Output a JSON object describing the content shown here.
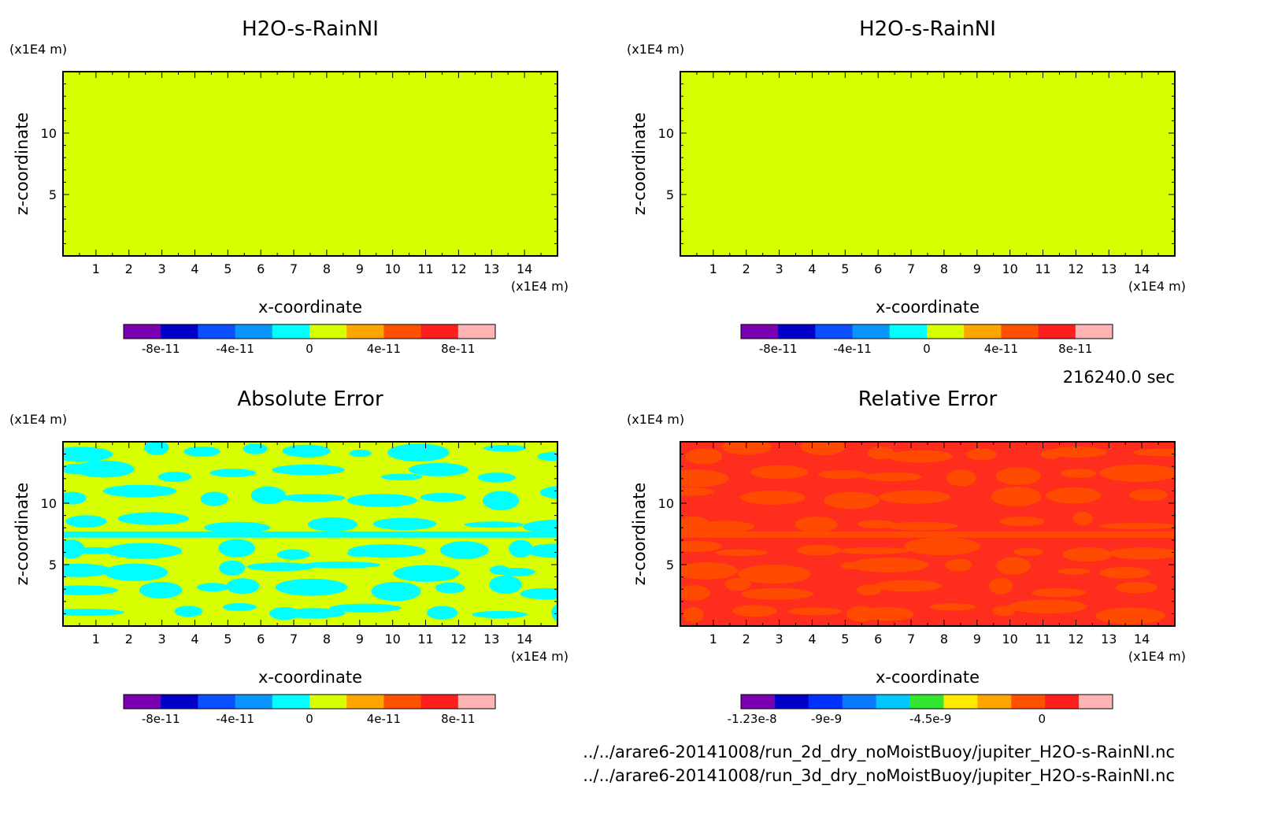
{
  "chart_data": [
    {
      "type": "heatmap",
      "title": "H2O-s-RainNI",
      "xlabel": "x-coordinate",
      "ylabel": "z-coordinate",
      "x_unit": "(x1E4 m)",
      "y_unit": "(x1E4 m)",
      "xlim": [
        0,
        15
      ],
      "ylim": [
        0,
        15
      ],
      "x_ticks": [
        "1",
        "2",
        "3",
        "4",
        "5",
        "6",
        "7",
        "8",
        "9",
        "10",
        "11",
        "12",
        "13",
        "14"
      ],
      "y_ticks": [
        "5",
        "10"
      ],
      "field": "uniform",
      "field_value": 0,
      "field_color": "#d7ff00",
      "colorbar": {
        "colors": [
          "#7a00b0",
          "#0000c8",
          "#0a50ff",
          "#0a96ff",
          "#00ffff",
          "#d7ff00",
          "#ffa500",
          "#ff5000",
          "#ff1e1e",
          "#ffb4b4"
        ],
        "labels": [
          "-8e-11",
          "-4e-11",
          "0",
          "4e-11",
          "8e-11"
        ]
      }
    },
    {
      "type": "heatmap",
      "title": "H2O-s-RainNI",
      "xlabel": "x-coordinate",
      "ylabel": "z-coordinate",
      "x_unit": "(x1E4 m)",
      "y_unit": "(x1E4 m)",
      "xlim": [
        0,
        15
      ],
      "ylim": [
        0,
        15
      ],
      "x_ticks": [
        "1",
        "2",
        "3",
        "4",
        "5",
        "6",
        "7",
        "8",
        "9",
        "10",
        "11",
        "12",
        "13",
        "14"
      ],
      "y_ticks": [
        "5",
        "10"
      ],
      "field": "uniform",
      "field_value": 0,
      "field_color": "#d7ff00",
      "colorbar": {
        "colors": [
          "#7a00b0",
          "#0000c8",
          "#0a50ff",
          "#0a96ff",
          "#00ffff",
          "#d7ff00",
          "#ffa500",
          "#ff5000",
          "#ff1e1e",
          "#ffb4b4"
        ],
        "labels": [
          "-8e-11",
          "-4e-11",
          "0",
          "4e-11",
          "8e-11"
        ]
      }
    },
    {
      "type": "heatmap",
      "title": "Absolute Error",
      "xlabel": "x-coordinate",
      "ylabel": "z-coordinate",
      "x_unit": "(x1E4 m)",
      "y_unit": "(x1E4 m)",
      "xlim": [
        0,
        15
      ],
      "ylim": [
        0,
        15
      ],
      "x_ticks": [
        "1",
        "2",
        "3",
        "4",
        "5",
        "6",
        "7",
        "8",
        "9",
        "10",
        "11",
        "12",
        "13",
        "14"
      ],
      "y_ticks": [
        "5",
        "10"
      ],
      "field": "patchy",
      "field_color": "#d7ff00",
      "patch_color": "#00ffff",
      "colorbar": {
        "colors": [
          "#7a00b0",
          "#0000c8",
          "#0a50ff",
          "#0a96ff",
          "#00ffff",
          "#d7ff00",
          "#ffa500",
          "#ff5000",
          "#ff1e1e",
          "#ffb4b4"
        ],
        "labels": [
          "-8e-11",
          "-4e-11",
          "0",
          "4e-11",
          "8e-11"
        ]
      }
    },
    {
      "type": "heatmap",
      "title": "Relative Error",
      "xlabel": "x-coordinate",
      "ylabel": "z-coordinate",
      "x_unit": "(x1E4 m)",
      "y_unit": "(x1E4 m)",
      "xlim": [
        0,
        15
      ],
      "ylim": [
        0,
        15
      ],
      "x_ticks": [
        "1",
        "2",
        "3",
        "4",
        "5",
        "6",
        "7",
        "8",
        "9",
        "10",
        "11",
        "12",
        "13",
        "14"
      ],
      "y_ticks": [
        "5",
        "10"
      ],
      "field": "patchy",
      "field_color": "#ff2d1e",
      "patch_color": "#ff4b00",
      "colorbar": {
        "colors": [
          "#7a00b0",
          "#0000c8",
          "#0032ff",
          "#0a78ff",
          "#00c8ff",
          "#32e632",
          "#ffeb00",
          "#ffa500",
          "#ff5000",
          "#ff1e1e",
          "#ffb4b4"
        ],
        "labels": [
          "-1.23e-8",
          "-9e-9",
          "-4.5e-9",
          "0"
        ]
      }
    }
  ],
  "time_label": "216240.0 sec",
  "files": [
    "../../arare6-20141008/run_2d_dry_noMoistBuoy/jupiter_H2O-s-RainNI.nc",
    "../../arare6-20141008/run_3d_dry_noMoistBuoy/jupiter_H2O-s-RainNI.nc"
  ]
}
